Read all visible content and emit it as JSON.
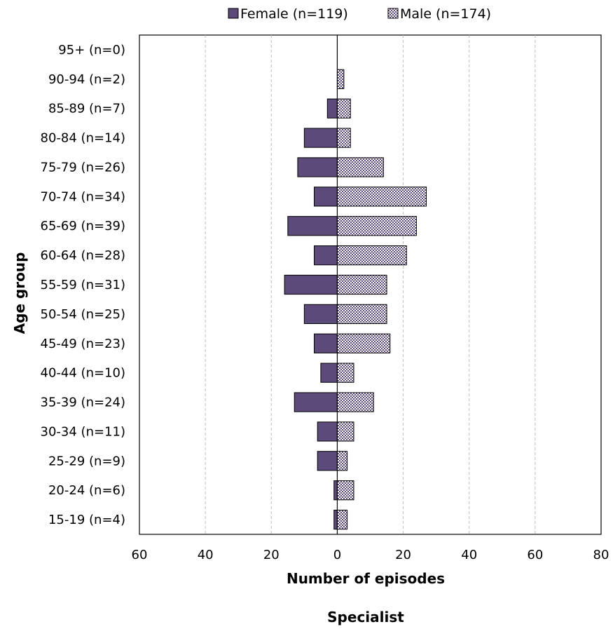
{
  "chart_data": {
    "type": "bar",
    "orientation": "horizontal",
    "caption": "Specialist",
    "xlabel": "Number of episodes",
    "ylabel": "Age group",
    "xlim": [
      -60,
      80
    ],
    "x_ticks": [
      -60,
      -40,
      -20,
      0,
      20,
      40,
      60,
      80
    ],
    "x_tick_labels": [
      "60",
      "40",
      "20",
      "0",
      "20",
      "40",
      "60",
      "80"
    ],
    "grid": "vertical dashed",
    "legend_position": "top",
    "categories": [
      "95+ (n=0)",
      "90-94 (n=2)",
      "85-89 (n=7)",
      "80-84 (n=14)",
      "75-79 (n=26)",
      "70-74 (n=34)",
      "65-69 (n=39)",
      "60-64 (n=28)",
      "55-59 (n=31)",
      "50-54 (n=25)",
      "45-49 (n=23)",
      "40-44 (n=10)",
      "35-39 (n=24)",
      "30-34 (n=11)",
      "25-29 (n=9)",
      "20-24 (n=6)",
      "15-19 (n=4)"
    ],
    "series": [
      {
        "name": "Female (n=119)",
        "color": "#5b4a7a",
        "pattern": "solid",
        "values": [
          0,
          0,
          3,
          10,
          12,
          7,
          15,
          7,
          16,
          10,
          7,
          5,
          13,
          6,
          6,
          1,
          1
        ]
      },
      {
        "name": "Male (n=174)",
        "color": "#5b4a7a",
        "pattern": "checkered",
        "values": [
          0,
          2,
          4,
          4,
          14,
          27,
          24,
          21,
          15,
          15,
          16,
          5,
          11,
          5,
          3,
          5,
          3
        ]
      }
    ]
  }
}
